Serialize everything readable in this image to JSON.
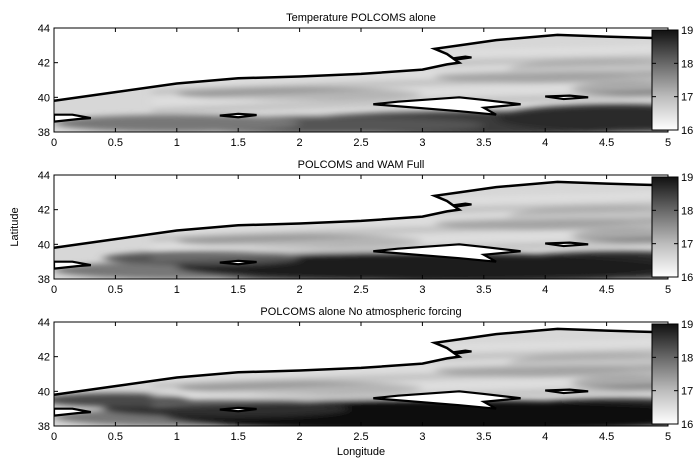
{
  "chart_data": [
    {
      "type": "heatmap",
      "title": "Temperature POLCOMS alone",
      "xlabel": "",
      "ylabel": "",
      "xlim": [
        0,
        5
      ],
      "ylim": [
        38,
        44
      ],
      "xticks": [
        "0",
        "0.5",
        "1",
        "1.5",
        "2",
        "2.5",
        "3",
        "3.5",
        "4",
        "4.5",
        "5"
      ],
      "yticks": [
        "38",
        "40",
        "42",
        "44"
      ],
      "colorbar": {
        "min": 16,
        "max": 19,
        "ticks": [
          "16",
          "17",
          "18",
          "19"
        ]
      },
      "colormap": "grayscale-reversed"
    },
    {
      "type": "heatmap",
      "title": "POLCOMS and WAM Full",
      "xlabel": "",
      "ylabel": "Latitude",
      "xlim": [
        0,
        5
      ],
      "ylim": [
        38,
        44
      ],
      "xticks": [
        "0",
        "0.5",
        "1",
        "1.5",
        "2",
        "2.5",
        "3",
        "3.5",
        "4",
        "4.5",
        "5"
      ],
      "yticks": [
        "38",
        "40",
        "42",
        "44"
      ],
      "colorbar": {
        "min": 16,
        "max": 19,
        "ticks": [
          "16",
          "17",
          "18",
          "19"
        ]
      },
      "colormap": "grayscale-reversed"
    },
    {
      "type": "heatmap",
      "title": "POLCOMS alone No atmospheric forcing",
      "xlabel": "Longitude",
      "ylabel": "",
      "xlim": [
        0,
        5
      ],
      "ylim": [
        38,
        44
      ],
      "xticks": [
        "0",
        "0.5",
        "1",
        "1.5",
        "2",
        "2.5",
        "3",
        "3.5",
        "4",
        "4.5",
        "5"
      ],
      "yticks": [
        "38",
        "40",
        "42",
        "44"
      ],
      "colorbar": {
        "min": 16,
        "max": 19,
        "ticks": [
          "16",
          "17",
          "18",
          "19"
        ]
      },
      "colormap": "grayscale-reversed"
    }
  ]
}
